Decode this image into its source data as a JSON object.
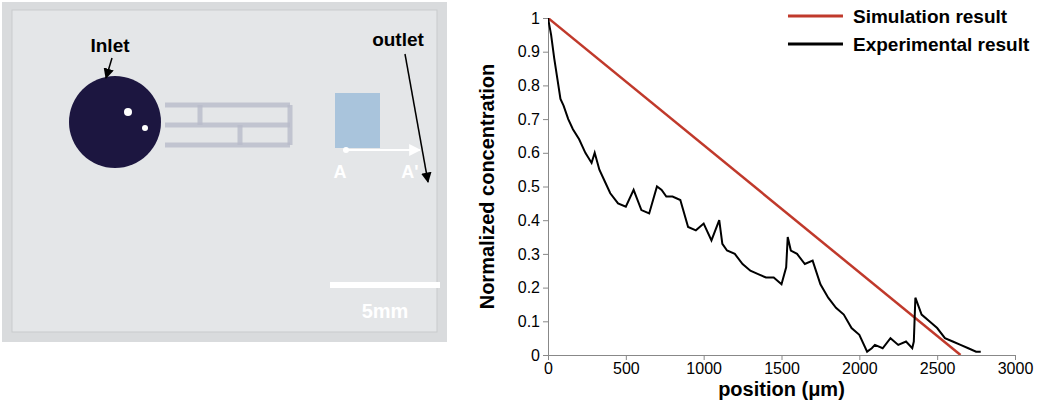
{
  "chart_data": {
    "type": "line",
    "x_label": "position (μm)",
    "y_label": "Normalized concentration",
    "xlim": [
      0,
      3000
    ],
    "xticks": [
      0,
      500,
      1000,
      1500,
      2000,
      2500,
      3000
    ],
    "ylim": [
      0,
      1
    ],
    "yticks": [
      0,
      0.1,
      0.2,
      0.3,
      0.4,
      0.5,
      0.6,
      0.7,
      0.8,
      0.9,
      1
    ],
    "grid": false,
    "legend": "upper right",
    "series": [
      {
        "name": "Simulation result",
        "color": "#c0392b",
        "x": [
          0,
          2650
        ],
        "values": [
          1,
          0
        ]
      },
      {
        "name": "Experimental result",
        "color": "#000000",
        "x": [
          0,
          20,
          40,
          60,
          80,
          100,
          130,
          160,
          200,
          240,
          280,
          300,
          330,
          360,
          400,
          450,
          500,
          550,
          600,
          650,
          700,
          730,
          760,
          800,
          850,
          900,
          950,
          1000,
          1050,
          1100,
          1120,
          1150,
          1200,
          1250,
          1300,
          1350,
          1400,
          1450,
          1500,
          1530,
          1540,
          1560,
          1600,
          1650,
          1700,
          1750,
          1800,
          1850,
          1900,
          1950,
          2000,
          2050,
          2080,
          2100,
          2150,
          2200,
          2250,
          2300,
          2340,
          2350,
          2360,
          2400,
          2450,
          2500,
          2550,
          2600,
          2650,
          2700,
          2750,
          2780
        ],
        "values": [
          1,
          0.95,
          0.88,
          0.82,
          0.76,
          0.74,
          0.7,
          0.67,
          0.64,
          0.6,
          0.57,
          0.6,
          0.55,
          0.52,
          0.48,
          0.45,
          0.44,
          0.49,
          0.43,
          0.42,
          0.5,
          0.49,
          0.47,
          0.47,
          0.46,
          0.38,
          0.37,
          0.39,
          0.34,
          0.4,
          0.33,
          0.31,
          0.3,
          0.27,
          0.25,
          0.24,
          0.23,
          0.23,
          0.21,
          0.26,
          0.35,
          0.31,
          0.3,
          0.27,
          0.28,
          0.21,
          0.17,
          0.14,
          0.12,
          0.08,
          0.06,
          0.01,
          0.02,
          0.03,
          0.02,
          0.05,
          0.03,
          0.04,
          0.02,
          0.04,
          0.17,
          0.12,
          0.1,
          0.08,
          0.05,
          0.04,
          0.03,
          0.02,
          0.01,
          0.01
        ]
      }
    ]
  },
  "photo": {
    "labels": {
      "inlet": "Inlet",
      "outlet": "outlet",
      "a": "A",
      "a_prime": "A'",
      "scale_bar": "5mm"
    }
  }
}
